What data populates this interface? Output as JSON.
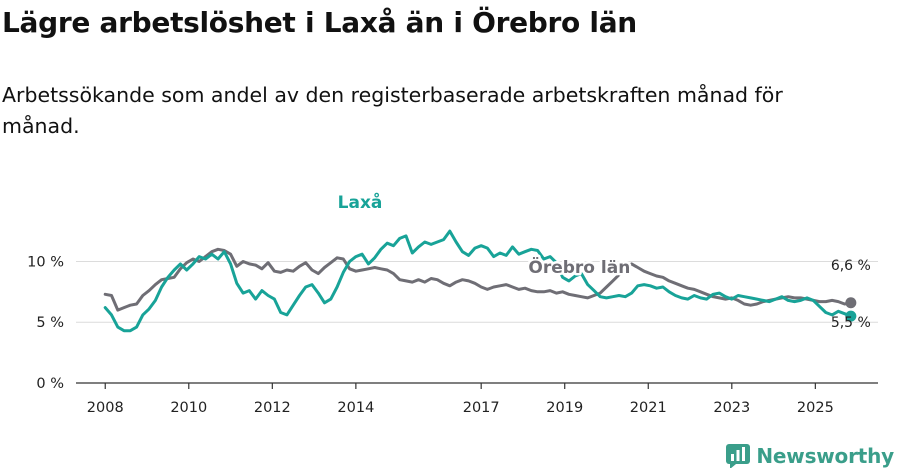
{
  "title": "Lägre arbetslöshet i Laxå än i Örebro län",
  "subtitle": "Arbetssökande som andel av den registerbaserade arbetskraften månad för månad.",
  "brand": "Newsworthy",
  "colors": {
    "laxa": "#18a398",
    "orebro": "#6f6e75",
    "grid": "#dcdcdc",
    "axis": "#333333",
    "brand": "#3a9e8a"
  },
  "chart_data": {
    "type": "line",
    "title": "Lägre arbetslöshet i Laxå än i Örebro län",
    "ylabel": "",
    "xlabel": "",
    "ylim": [
      0,
      13
    ],
    "xlim": [
      2007.3,
      2026.5
    ],
    "yticks": [
      0,
      5,
      10
    ],
    "ytick_labels": [
      "0 %",
      "5 %",
      "10 %"
    ],
    "xticks": [
      2008,
      2010,
      2012,
      2014,
      2017,
      2019,
      2021,
      2023,
      2025
    ],
    "xtick_labels": [
      "2008",
      "2010",
      "2012",
      "2014",
      "2017",
      "2019",
      "2021",
      "2023",
      "2025"
    ],
    "series": [
      {
        "name": "Laxå",
        "label": "Laxå",
        "end_label": "5,5 %",
        "points": [
          [
            2008.0,
            6.2
          ],
          [
            2008.15,
            5.6
          ],
          [
            2008.3,
            4.6
          ],
          [
            2008.45,
            4.3
          ],
          [
            2008.6,
            4.3
          ],
          [
            2008.75,
            4.6
          ],
          [
            2008.9,
            5.6
          ],
          [
            2009.05,
            6.1
          ],
          [
            2009.2,
            6.8
          ],
          [
            2009.35,
            7.9
          ],
          [
            2009.5,
            8.7
          ],
          [
            2009.65,
            9.3
          ],
          [
            2009.8,
            9.8
          ],
          [
            2009.95,
            9.3
          ],
          [
            2010.1,
            9.8
          ],
          [
            2010.25,
            10.4
          ],
          [
            2010.4,
            10.2
          ],
          [
            2010.55,
            10.6
          ],
          [
            2010.7,
            10.2
          ],
          [
            2010.85,
            10.8
          ],
          [
            2011.0,
            9.8
          ],
          [
            2011.15,
            8.2
          ],
          [
            2011.3,
            7.4
          ],
          [
            2011.45,
            7.6
          ],
          [
            2011.6,
            6.9
          ],
          [
            2011.75,
            7.6
          ],
          [
            2011.9,
            7.2
          ],
          [
            2012.05,
            6.9
          ],
          [
            2012.2,
            5.8
          ],
          [
            2012.35,
            5.6
          ],
          [
            2012.5,
            6.4
          ],
          [
            2012.65,
            7.2
          ],
          [
            2012.8,
            7.9
          ],
          [
            2012.95,
            8.1
          ],
          [
            2013.1,
            7.4
          ],
          [
            2013.25,
            6.6
          ],
          [
            2013.4,
            6.9
          ],
          [
            2013.55,
            7.9
          ],
          [
            2013.7,
            9.1
          ],
          [
            2013.85,
            10.0
          ],
          [
            2014.0,
            10.4
          ],
          [
            2014.15,
            10.6
          ],
          [
            2014.3,
            9.8
          ],
          [
            2014.45,
            10.3
          ],
          [
            2014.6,
            11.0
          ],
          [
            2014.75,
            11.5
          ],
          [
            2014.9,
            11.3
          ],
          [
            2015.05,
            11.9
          ],
          [
            2015.2,
            12.1
          ],
          [
            2015.35,
            10.7
          ],
          [
            2015.5,
            11.2
          ],
          [
            2015.65,
            11.6
          ],
          [
            2015.8,
            11.4
          ],
          [
            2015.95,
            11.6
          ],
          [
            2016.1,
            11.8
          ],
          [
            2016.25,
            12.5
          ],
          [
            2016.4,
            11.6
          ],
          [
            2016.55,
            10.8
          ],
          [
            2016.7,
            10.5
          ],
          [
            2016.85,
            11.1
          ],
          [
            2017.0,
            11.3
          ],
          [
            2017.15,
            11.1
          ],
          [
            2017.3,
            10.4
          ],
          [
            2017.45,
            10.7
          ],
          [
            2017.6,
            10.5
          ],
          [
            2017.75,
            11.2
          ],
          [
            2017.9,
            10.6
          ],
          [
            2018.05,
            10.8
          ],
          [
            2018.2,
            11.0
          ],
          [
            2018.35,
            10.9
          ],
          [
            2018.5,
            10.2
          ],
          [
            2018.65,
            10.4
          ],
          [
            2018.8,
            9.9
          ],
          [
            2018.95,
            8.7
          ],
          [
            2019.1,
            8.4
          ],
          [
            2019.25,
            8.8
          ],
          [
            2019.4,
            9.0
          ],
          [
            2019.55,
            8.1
          ],
          [
            2019.7,
            7.6
          ],
          [
            2019.85,
            7.1
          ],
          [
            2020.0,
            7.0
          ],
          [
            2020.15,
            7.1
          ],
          [
            2020.3,
            7.2
          ],
          [
            2020.45,
            7.1
          ],
          [
            2020.6,
            7.4
          ],
          [
            2020.75,
            8.0
          ],
          [
            2020.9,
            8.1
          ],
          [
            2021.05,
            8.0
          ],
          [
            2021.2,
            7.8
          ],
          [
            2021.35,
            7.9
          ],
          [
            2021.5,
            7.5
          ],
          [
            2021.65,
            7.2
          ],
          [
            2021.8,
            7.0
          ],
          [
            2021.95,
            6.9
          ],
          [
            2022.1,
            7.2
          ],
          [
            2022.25,
            7.0
          ],
          [
            2022.4,
            6.9
          ],
          [
            2022.55,
            7.3
          ],
          [
            2022.7,
            7.4
          ],
          [
            2022.85,
            7.1
          ],
          [
            2023.0,
            6.9
          ],
          [
            2023.15,
            7.2
          ],
          [
            2023.3,
            7.1
          ],
          [
            2023.45,
            7.0
          ],
          [
            2023.6,
            6.9
          ],
          [
            2023.75,
            6.8
          ],
          [
            2023.9,
            6.7
          ],
          [
            2024.05,
            6.9
          ],
          [
            2024.2,
            7.1
          ],
          [
            2024.35,
            6.8
          ],
          [
            2024.5,
            6.7
          ],
          [
            2024.65,
            6.8
          ],
          [
            2024.8,
            7.0
          ],
          [
            2024.95,
            6.8
          ],
          [
            2025.1,
            6.3
          ],
          [
            2025.25,
            5.8
          ],
          [
            2025.4,
            5.6
          ],
          [
            2025.55,
            5.9
          ],
          [
            2025.7,
            5.7
          ],
          [
            2025.85,
            5.5
          ]
        ]
      },
      {
        "name": "Örebro län",
        "label": "Örebro län",
        "end_label": "6,6 %",
        "points": [
          [
            2008.0,
            7.3
          ],
          [
            2008.15,
            7.2
          ],
          [
            2008.3,
            6.0
          ],
          [
            2008.45,
            6.2
          ],
          [
            2008.6,
            6.4
          ],
          [
            2008.75,
            6.5
          ],
          [
            2008.9,
            7.2
          ],
          [
            2009.05,
            7.6
          ],
          [
            2009.2,
            8.1
          ],
          [
            2009.35,
            8.5
          ],
          [
            2009.5,
            8.6
          ],
          [
            2009.65,
            8.7
          ],
          [
            2009.8,
            9.4
          ],
          [
            2009.95,
            9.9
          ],
          [
            2010.1,
            10.2
          ],
          [
            2010.25,
            10.0
          ],
          [
            2010.4,
            10.4
          ],
          [
            2010.55,
            10.8
          ],
          [
            2010.7,
            11.0
          ],
          [
            2010.85,
            10.9
          ],
          [
            2011.0,
            10.6
          ],
          [
            2011.15,
            9.6
          ],
          [
            2011.3,
            10.0
          ],
          [
            2011.45,
            9.8
          ],
          [
            2011.6,
            9.7
          ],
          [
            2011.75,
            9.4
          ],
          [
            2011.9,
            9.9
          ],
          [
            2012.05,
            9.2
          ],
          [
            2012.2,
            9.1
          ],
          [
            2012.35,
            9.3
          ],
          [
            2012.5,
            9.2
          ],
          [
            2012.65,
            9.6
          ],
          [
            2012.8,
            9.9
          ],
          [
            2012.95,
            9.3
          ],
          [
            2013.1,
            9.0
          ],
          [
            2013.25,
            9.5
          ],
          [
            2013.4,
            9.9
          ],
          [
            2013.55,
            10.3
          ],
          [
            2013.7,
            10.2
          ],
          [
            2013.85,
            9.4
          ],
          [
            2014.0,
            9.2
          ],
          [
            2014.15,
            9.3
          ],
          [
            2014.3,
            9.4
          ],
          [
            2014.45,
            9.5
          ],
          [
            2014.6,
            9.4
          ],
          [
            2014.75,
            9.3
          ],
          [
            2014.9,
            9.0
          ],
          [
            2015.05,
            8.5
          ],
          [
            2015.2,
            8.4
          ],
          [
            2015.35,
            8.3
          ],
          [
            2015.5,
            8.5
          ],
          [
            2015.65,
            8.3
          ],
          [
            2015.8,
            8.6
          ],
          [
            2015.95,
            8.5
          ],
          [
            2016.1,
            8.2
          ],
          [
            2016.25,
            8.0
          ],
          [
            2016.4,
            8.3
          ],
          [
            2016.55,
            8.5
          ],
          [
            2016.7,
            8.4
          ],
          [
            2016.85,
            8.2
          ],
          [
            2017.0,
            7.9
          ],
          [
            2017.15,
            7.7
          ],
          [
            2017.3,
            7.9
          ],
          [
            2017.45,
            8.0
          ],
          [
            2017.6,
            8.1
          ],
          [
            2017.75,
            7.9
          ],
          [
            2017.9,
            7.7
          ],
          [
            2018.05,
            7.8
          ],
          [
            2018.2,
            7.6
          ],
          [
            2018.35,
            7.5
          ],
          [
            2018.5,
            7.5
          ],
          [
            2018.65,
            7.6
          ],
          [
            2018.8,
            7.4
          ],
          [
            2018.95,
            7.5
          ],
          [
            2019.1,
            7.3
          ],
          [
            2019.25,
            7.2
          ],
          [
            2019.4,
            7.1
          ],
          [
            2019.55,
            7.0
          ],
          [
            2019.7,
            7.2
          ],
          [
            2019.85,
            7.4
          ],
          [
            2020.0,
            7.9
          ],
          [
            2020.15,
            8.4
          ],
          [
            2020.3,
            8.9
          ],
          [
            2020.45,
            9.4
          ],
          [
            2020.6,
            9.8
          ],
          [
            2020.75,
            9.5
          ],
          [
            2020.9,
            9.2
          ],
          [
            2021.05,
            9.0
          ],
          [
            2021.2,
            8.8
          ],
          [
            2021.35,
            8.7
          ],
          [
            2021.5,
            8.4
          ],
          [
            2021.65,
            8.2
          ],
          [
            2021.8,
            8.0
          ],
          [
            2021.95,
            7.8
          ],
          [
            2022.1,
            7.7
          ],
          [
            2022.25,
            7.5
          ],
          [
            2022.4,
            7.3
          ],
          [
            2022.55,
            7.1
          ],
          [
            2022.7,
            7.0
          ],
          [
            2022.85,
            6.9
          ],
          [
            2023.0,
            7.0
          ],
          [
            2023.15,
            6.8
          ],
          [
            2023.3,
            6.5
          ],
          [
            2023.45,
            6.4
          ],
          [
            2023.6,
            6.5
          ],
          [
            2023.75,
            6.7
          ],
          [
            2023.9,
            6.8
          ],
          [
            2024.05,
            6.9
          ],
          [
            2024.2,
            7.0
          ],
          [
            2024.35,
            7.1
          ],
          [
            2024.5,
            7.0
          ],
          [
            2024.65,
            7.0
          ],
          [
            2024.8,
            6.9
          ],
          [
            2024.95,
            6.8
          ],
          [
            2025.1,
            6.7
          ],
          [
            2025.25,
            6.7
          ],
          [
            2025.4,
            6.8
          ],
          [
            2025.55,
            6.7
          ],
          [
            2025.7,
            6.5
          ],
          [
            2025.85,
            6.6
          ]
        ]
      }
    ]
  }
}
